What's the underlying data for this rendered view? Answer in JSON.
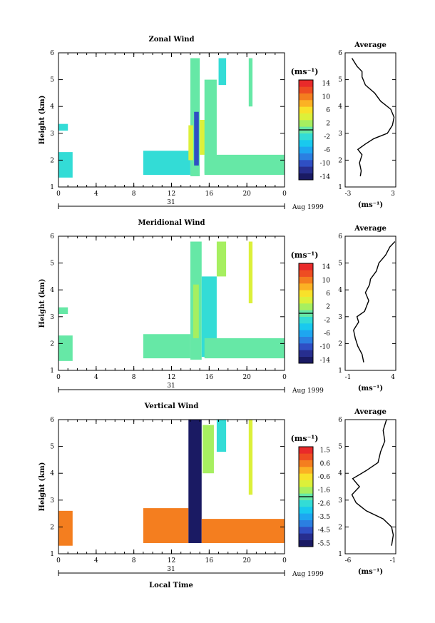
{
  "figure": {
    "x_axis_title": "Local Time",
    "date_label_day": "31",
    "date_label_month": "Aug 1999",
    "profile_title": "Average",
    "profile_unit": "(ms⁻¹)",
    "colorbar_unit": "(ms⁻¹)"
  },
  "chart_data": [
    {
      "type": "heatmap",
      "title": "Zonal Wind",
      "xlabel": "",
      "ylabel": "Height (km)",
      "xlim": [
        0,
        24
      ],
      "ylim": [
        1,
        6
      ],
      "xticks": [
        "0",
        "4",
        "8",
        "12",
        "16",
        "20",
        "0"
      ],
      "yticks": [
        "1",
        "2",
        "3",
        "4",
        "5",
        "6"
      ],
      "colorbar": {
        "ticks": [
          "14",
          "10",
          "6",
          "2",
          "-2",
          "-6",
          "-10",
          "-14"
        ],
        "range": [
          -16,
          16
        ]
      },
      "regions": [
        {
          "t": [
            0.0,
            1.5
          ],
          "h": [
            1.35,
            2.3
          ],
          "v": -2
        },
        {
          "t": [
            0.0,
            1.0
          ],
          "h": [
            3.1,
            3.35
          ],
          "v": -2
        },
        {
          "t": [
            9.0,
            14.0
          ],
          "h": [
            1.45,
            2.35
          ],
          "v": -2
        },
        {
          "t": [
            14.0,
            15.0
          ],
          "h": [
            1.4,
            5.8
          ],
          "v": -1
        },
        {
          "t": [
            14.4,
            14.9
          ],
          "h": [
            1.8,
            3.8
          ],
          "v": -10
        },
        {
          "t": [
            13.8,
            14.3
          ],
          "h": [
            2.0,
            3.3
          ],
          "v": 4
        },
        {
          "t": [
            15.0,
            15.6
          ],
          "h": [
            2.2,
            3.5
          ],
          "v": 4
        },
        {
          "t": [
            15.5,
            16.8
          ],
          "h": [
            1.5,
            5.0
          ],
          "v": 0
        },
        {
          "t": [
            15.5,
            24.0
          ],
          "h": [
            1.45,
            2.2
          ],
          "v": -1
        },
        {
          "t": [
            17.0,
            17.8
          ],
          "h": [
            4.8,
            5.8
          ],
          "v": -2
        },
        {
          "t": [
            20.2,
            20.6
          ],
          "h": [
            4.0,
            5.8
          ],
          "v": 1
        }
      ],
      "profile": {
        "xlim": [
          -3,
          3
        ],
        "xticks": [
          "-3",
          "3"
        ],
        "points": [
          [
            -1.2,
            1.4
          ],
          [
            -1.1,
            1.6
          ],
          [
            -1.3,
            1.9
          ],
          [
            -1.0,
            2.2
          ],
          [
            -1.5,
            2.4
          ],
          [
            -0.6,
            2.6
          ],
          [
            0.4,
            2.8
          ],
          [
            2.0,
            3.0
          ],
          [
            2.6,
            3.3
          ],
          [
            2.8,
            3.6
          ],
          [
            2.4,
            3.9
          ],
          [
            1.2,
            4.2
          ],
          [
            0.5,
            4.5
          ],
          [
            -0.6,
            4.8
          ],
          [
            -1.0,
            5.1
          ],
          [
            -1.0,
            5.3
          ],
          [
            -1.6,
            5.5
          ],
          [
            -2.2,
            5.8
          ]
        ]
      }
    },
    {
      "type": "heatmap",
      "title": "Meridional Wind",
      "xlabel": "",
      "ylabel": "Height (km)",
      "xlim": [
        0,
        24
      ],
      "ylim": [
        1,
        6
      ],
      "xticks": [
        "0",
        "4",
        "8",
        "12",
        "16",
        "20",
        "0"
      ],
      "yticks": [
        "1",
        "2",
        "3",
        "4",
        "5",
        "6"
      ],
      "colorbar": {
        "ticks": [
          "14",
          "10",
          "6",
          "2",
          "-2",
          "-6",
          "-10",
          "-14"
        ],
        "range": [
          -16,
          16
        ]
      },
      "regions": [
        {
          "t": [
            0.0,
            1.5
          ],
          "h": [
            1.35,
            2.3
          ],
          "v": -1
        },
        {
          "t": [
            0.0,
            1.0
          ],
          "h": [
            3.1,
            3.35
          ],
          "v": -1
        },
        {
          "t": [
            9.0,
            14.0
          ],
          "h": [
            1.45,
            2.35
          ],
          "v": -1
        },
        {
          "t": [
            14.0,
            15.2
          ],
          "h": [
            1.4,
            5.8
          ],
          "v": -1
        },
        {
          "t": [
            14.3,
            14.9
          ],
          "h": [
            2.2,
            4.2
          ],
          "v": 2
        },
        {
          "t": [
            15.2,
            16.8
          ],
          "h": [
            1.5,
            4.5
          ],
          "v": -2
        },
        {
          "t": [
            15.5,
            24.0
          ],
          "h": [
            1.45,
            2.2
          ],
          "v": 1
        },
        {
          "t": [
            16.8,
            17.8
          ],
          "h": [
            4.5,
            5.8
          ],
          "v": 3
        },
        {
          "t": [
            20.2,
            20.6
          ],
          "h": [
            3.5,
            5.8
          ],
          "v": 4
        }
      ],
      "profile": {
        "xlim": [
          -2,
          4
        ],
        "xticks": [
          "-1",
          "4"
        ],
        "points": [
          [
            0.2,
            1.3
          ],
          [
            0.0,
            1.6
          ],
          [
            -0.5,
            1.9
          ],
          [
            -0.8,
            2.2
          ],
          [
            -1.0,
            2.5
          ],
          [
            -0.4,
            2.8
          ],
          [
            -0.6,
            3.0
          ],
          [
            0.3,
            3.2
          ],
          [
            0.8,
            3.6
          ],
          [
            0.4,
            3.9
          ],
          [
            0.9,
            4.2
          ],
          [
            1.0,
            4.4
          ],
          [
            1.7,
            4.7
          ],
          [
            2.0,
            5.0
          ],
          [
            2.8,
            5.3
          ],
          [
            3.3,
            5.6
          ],
          [
            3.9,
            5.8
          ]
        ]
      }
    },
    {
      "type": "heatmap",
      "title": "Vertical Wind",
      "xlabel": "Local Time",
      "ylabel": "Height (km)",
      "xlim": [
        0,
        24
      ],
      "ylim": [
        1,
        6
      ],
      "xticks": [
        "0",
        "4",
        "8",
        "12",
        "16",
        "20",
        "0"
      ],
      "yticks": [
        "1",
        "2",
        "3",
        "4",
        "5",
        "6"
      ],
      "colorbar": {
        "ticks": [
          "1.5",
          "0.6",
          "-0.6",
          "-1.6",
          "-2.6",
          "-3.5",
          "-4.5",
          "-5.5"
        ],
        "range": [
          -6,
          2
        ]
      },
      "regions": [
        {
          "t": [
            0.0,
            1.5
          ],
          "h": [
            1.3,
            2.6
          ],
          "v": 0.8
        },
        {
          "t": [
            9.0,
            13.8
          ],
          "h": [
            1.4,
            2.7
          ],
          "v": 0.8
        },
        {
          "t": [
            13.8,
            15.2
          ],
          "h": [
            1.4,
            6.0
          ],
          "v": -5.8
        },
        {
          "t": [
            15.2,
            24.0
          ],
          "h": [
            1.4,
            2.3
          ],
          "v": 0.8
        },
        {
          "t": [
            15.3,
            16.5
          ],
          "h": [
            4.0,
            5.8
          ],
          "v": -1.6
        },
        {
          "t": [
            16.8,
            17.8
          ],
          "h": [
            4.8,
            6.0
          ],
          "v": -2.5
        },
        {
          "t": [
            20.2,
            20.6
          ],
          "h": [
            3.2,
            6.0
          ],
          "v": -1.2
        }
      ],
      "profile": {
        "xlim": [
          -6.5,
          -0.5
        ],
        "xticks": [
          "-6",
          "-1"
        ],
        "points": [
          [
            -1.0,
            1.3
          ],
          [
            -0.8,
            1.7
          ],
          [
            -1.0,
            2.0
          ],
          [
            -2.0,
            2.3
          ],
          [
            -4.0,
            2.6
          ],
          [
            -5.2,
            2.9
          ],
          [
            -5.7,
            3.2
          ],
          [
            -4.8,
            3.5
          ],
          [
            -5.6,
            3.8
          ],
          [
            -4.0,
            4.1
          ],
          [
            -2.6,
            4.4
          ],
          [
            -2.3,
            4.8
          ],
          [
            -1.8,
            5.2
          ],
          [
            -2.0,
            5.6
          ],
          [
            -1.6,
            6.0
          ]
        ]
      }
    }
  ]
}
